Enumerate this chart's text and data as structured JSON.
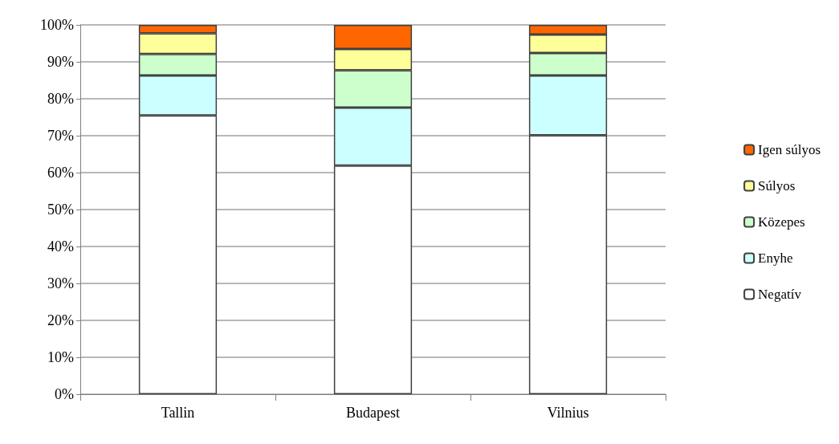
{
  "chart_data": {
    "type": "bar",
    "stacked": true,
    "categories": [
      "Tallin",
      "Budapest",
      "Vilnius"
    ],
    "series": [
      {
        "name": "Negatív",
        "color": "#ffffff",
        "values": [
          75.5,
          61.9,
          70.1
        ]
      },
      {
        "name": "Enyhe",
        "color": "#ccffff",
        "values": [
          10.8,
          15.7,
          16.2
        ]
      },
      {
        "name": "Közepes",
        "color": "#ccffcc",
        "values": [
          5.8,
          10.1,
          6.1
        ]
      },
      {
        "name": "Súlyos",
        "color": "#ffff99",
        "values": [
          5.6,
          5.8,
          5.0
        ]
      },
      {
        "name": "Igen súlyos",
        "color": "#ff6600",
        "values": [
          2.3,
          6.5,
          2.6
        ]
      }
    ],
    "ylim": [
      0,
      100
    ],
    "yticks": [
      {
        "value": 0,
        "label": "0%"
      },
      {
        "value": 10,
        "label": "10%"
      },
      {
        "value": 20,
        "label": "20%"
      },
      {
        "value": 30,
        "label": "30%"
      },
      {
        "value": 40,
        "label": "40%"
      },
      {
        "value": 50,
        "label": "50%"
      },
      {
        "value": 60,
        "label": "60%"
      },
      {
        "value": 70,
        "label": "70%"
      },
      {
        "value": 80,
        "label": "80%"
      },
      {
        "value": 90,
        "label": "90%"
      },
      {
        "value": 100,
        "label": "100%"
      }
    ],
    "grid": "y",
    "legend": "right"
  }
}
